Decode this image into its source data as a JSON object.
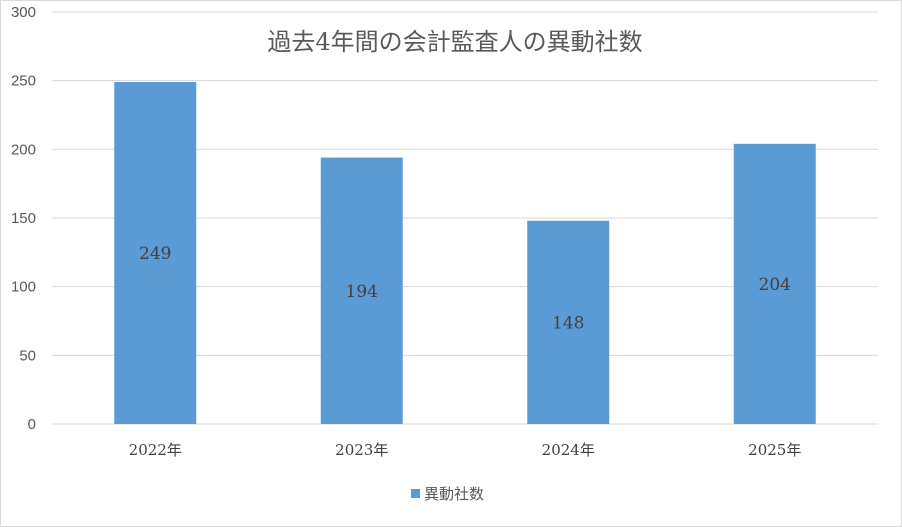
{
  "chart_data": {
    "type": "bar",
    "title": "過去4年間の会計監査人の異動社数",
    "categories": [
      "2022年",
      "2023年",
      "2024年",
      "2025年"
    ],
    "series": [
      {
        "name": "異動社数",
        "values": [
          249,
          194,
          148,
          204
        ],
        "color": "#5b9bd5"
      }
    ],
    "ylim": [
      0,
      300
    ],
    "yticks": [
      0,
      50,
      100,
      150,
      200,
      250,
      300
    ],
    "grid": true,
    "data_labels": true,
    "legend_position": "bottom"
  }
}
